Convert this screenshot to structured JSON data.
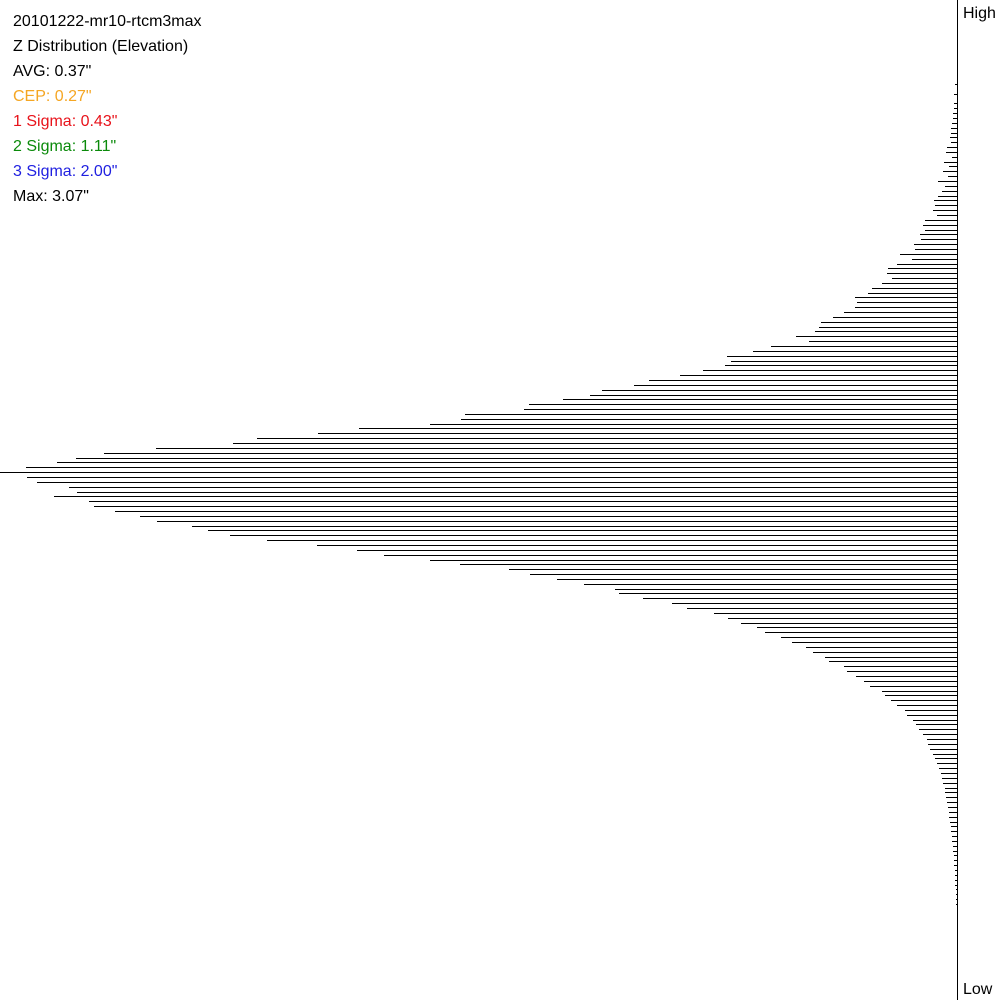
{
  "title": "20101222-mr10-rtcm3max",
  "subtitle": "Z Distribution (Elevation)",
  "stats": [
    {
      "label": "AVG",
      "value": "0.37\"",
      "color": "#000000"
    },
    {
      "label": "CEP",
      "value": "0.27\"",
      "color": "#f5a623"
    },
    {
      "label": "1 Sigma",
      "value": "0.43\"",
      "color": "#e8131b"
    },
    {
      "label": "2 Sigma",
      "value": "1.11\"",
      "color": "#0a8a0a"
    },
    {
      "label": "3 Sigma",
      "value": "2.00\"",
      "color": "#1f1fe0"
    },
    {
      "label": "Max",
      "value": "3.07\"",
      "color": "#000000"
    }
  ],
  "axis": {
    "high_label": "High",
    "low_label": "Low"
  },
  "chart_data": {
    "type": "bar",
    "orientation": "horizontal",
    "title": "20101222-mr10-rtcm3max",
    "subtitle": "Z Distribution (Elevation)",
    "ylabel_top": "High",
    "ylabel_bottom": "Low",
    "grid": false,
    "value_max": 957,
    "values": [
      2,
      0,
      3,
      0,
      3,
      3,
      4,
      4,
      5,
      6,
      6,
      7,
      6,
      10,
      11,
      5,
      13,
      8,
      14,
      9,
      19,
      12,
      15,
      19,
      23,
      22,
      24,
      20,
      32,
      34,
      32,
      37,
      36,
      43,
      42,
      57,
      45,
      60,
      69,
      70,
      65,
      75,
      85,
      89,
      102,
      100,
      102,
      113,
      124,
      136,
      138,
      142,
      161,
      148,
      186,
      204,
      230,
      226,
      232,
      254,
      277,
      308,
      323,
      355,
      367,
      394,
      428,
      433,
      492,
      496,
      527,
      598,
      639,
      700,
      724,
      801,
      853,
      881,
      900,
      931,
      957,
      930,
      920,
      888,
      880,
      903,
      868,
      863,
      842,
      817,
      800,
      765,
      749,
      727,
      690,
      640,
      600,
      573,
      527,
      497,
      448,
      427,
      400,
      373,
      342,
      338,
      314,
      285,
      270,
      243,
      229,
      216,
      200,
      192,
      176,
      165,
      151,
      144,
      132,
      128,
      113,
      110,
      101,
      93,
      87,
      75,
      72,
      66,
      60,
      52,
      50,
      44,
      41,
      38,
      34,
      30,
      29,
      27,
      24,
      22,
      20,
      18,
      16,
      15,
      14,
      12,
      12,
      11,
      10,
      9,
      8,
      8,
      7,
      6,
      6,
      5,
      5,
      4,
      4,
      3,
      3,
      3,
      2,
      2,
      2,
      2,
      1,
      1,
      1,
      1
    ]
  }
}
